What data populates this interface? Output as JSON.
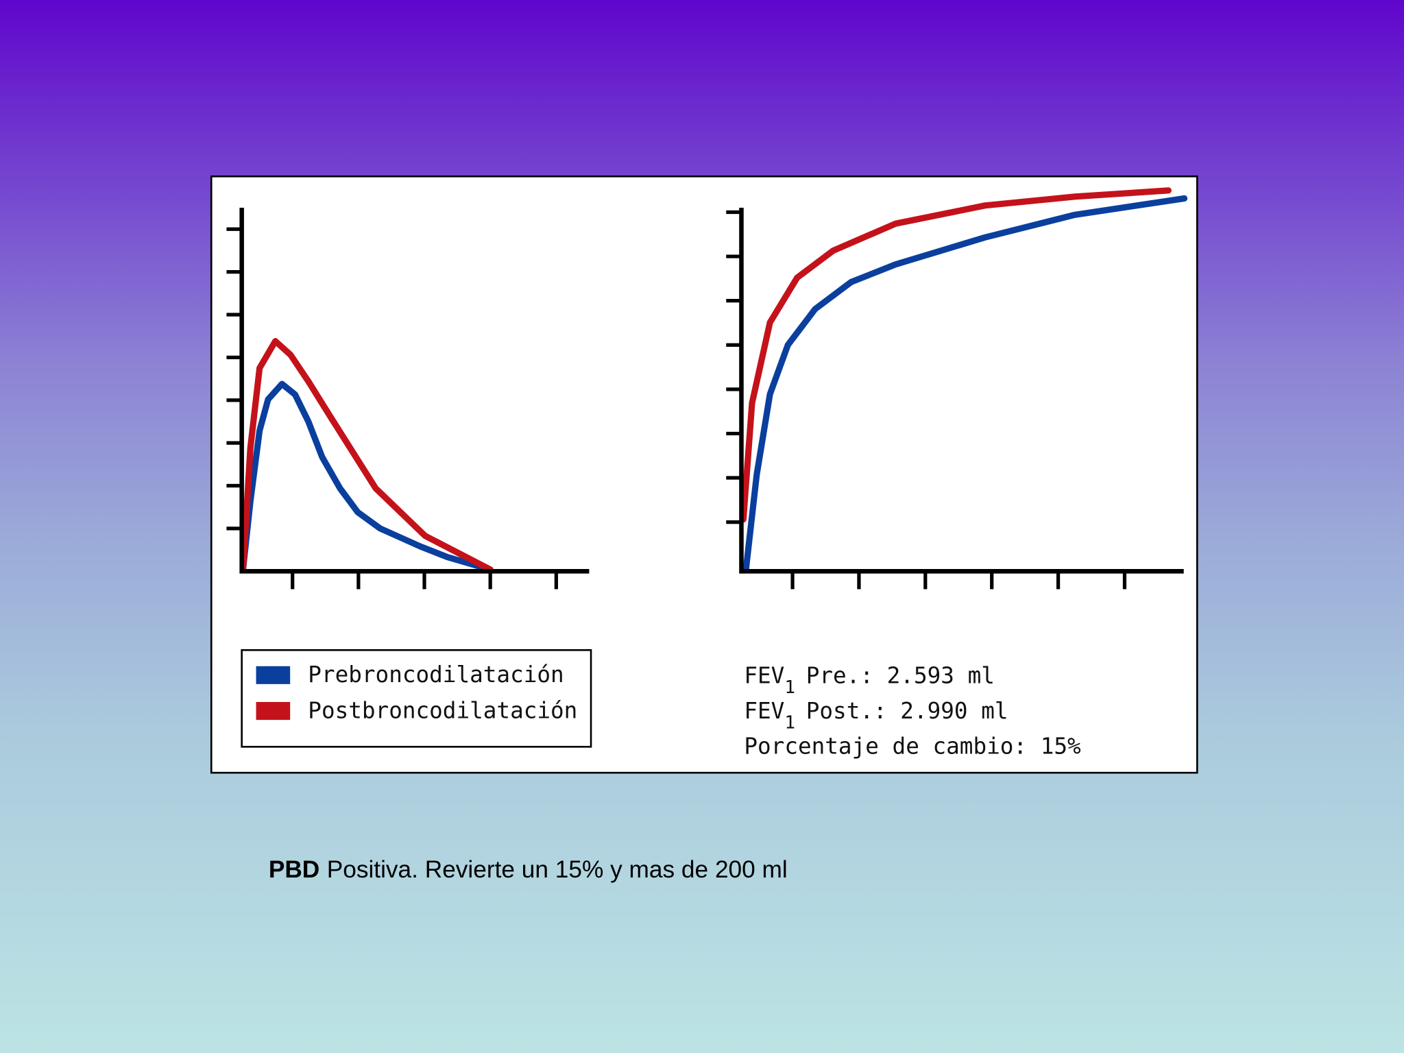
{
  "chart_data": [
    {
      "type": "line",
      "xlim": [
        0.23,
        5.5
      ],
      "xticks": [
        1,
        2,
        3,
        4,
        5
      ],
      "ylim": [
        0,
        8.5
      ],
      "yticks": [
        1,
        2,
        3,
        4,
        5,
        6,
        7,
        8
      ],
      "series": [
        {
          "name": "Prebroncodilatación",
          "color": "#0a3f9e",
          "x": [
            0.25,
            0.36,
            0.5,
            0.63,
            0.84,
            1.04,
            1.24,
            1.45,
            1.72,
            1.99,
            2.33,
            2.94,
            3.35,
            4.0
          ],
          "values": [
            0.06,
            1.63,
            3.29,
            4.02,
            4.38,
            4.13,
            3.5,
            2.67,
            1.94,
            1.38,
            1.0,
            0.58,
            0.33,
            0.04
          ]
        },
        {
          "name": "Postbroncodilatación",
          "color": "#c4121b",
          "x": [
            0.25,
            0.36,
            0.5,
            0.74,
            0.97,
            1.24,
            1.58,
            2.26,
            3.01,
            4.0
          ],
          "values": [
            0.06,
            2.88,
            4.75,
            5.38,
            5.06,
            4.44,
            3.6,
            1.94,
            0.83,
            0.04
          ]
        }
      ]
    },
    {
      "type": "line",
      "xlim": [
        0.23,
        6.89
      ],
      "xticks": [
        1,
        2,
        3,
        4,
        5,
        6
      ],
      "ylim": [
        -0.11,
        8.1
      ],
      "yticks": [
        1,
        2,
        3,
        4,
        5,
        6,
        7,
        8
      ],
      "series": [
        {
          "name": "Prebroncodilatación",
          "color": "#0a3f9e",
          "x": [
            0.3,
            0.46,
            0.66,
            0.93,
            1.34,
            1.88,
            2.55,
            3.9,
            5.25,
            6.9
          ],
          "values": [
            -0.05,
            2.07,
            3.89,
            5.0,
            5.81,
            6.42,
            6.82,
            7.43,
            7.94,
            8.31
          ]
        },
        {
          "name": "Postbroncodilatación",
          "color": "#c4121b",
          "x": [
            0.26,
            0.39,
            0.66,
            1.07,
            1.61,
            2.55,
            3.9,
            5.25,
            6.66
          ],
          "values": [
            1.06,
            3.69,
            5.51,
            6.52,
            7.13,
            7.74,
            8.15,
            8.35,
            8.49
          ]
        }
      ]
    }
  ],
  "annotations": [
    {
      "text": "FEV",
      "sub": "1",
      "rest": "Pre.: 2.593 ml"
    },
    {
      "text": "FEV",
      "sub": "1",
      "rest": "Post.: 2.990 ml"
    },
    {
      "text": "Porcentaje de cambio: 15%"
    }
  ],
  "caption": {
    "bold": "PBD",
    "text": "Positiva. Revierte un 15% y mas de 200 ml"
  }
}
